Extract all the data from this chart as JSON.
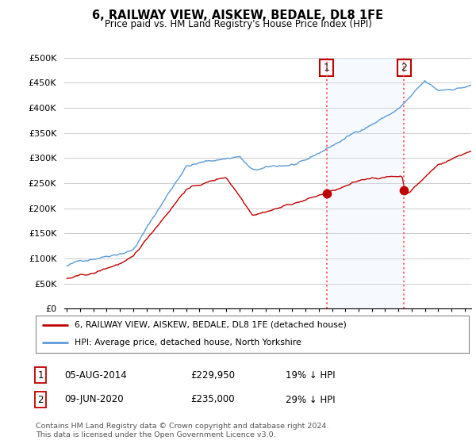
{
  "title": "6, RAILWAY VIEW, AISKEW, BEDALE, DL8 1FE",
  "subtitle": "Price paid vs. HM Land Registry's House Price Index (HPI)",
  "ylabel_ticks": [
    "£0",
    "£50K",
    "£100K",
    "£150K",
    "£200K",
    "£250K",
    "£300K",
    "£350K",
    "£400K",
    "£450K",
    "£500K"
  ],
  "ytick_values": [
    0,
    50000,
    100000,
    150000,
    200000,
    250000,
    300000,
    350000,
    400000,
    450000,
    500000
  ],
  "xlim_start": 1995.0,
  "xlim_end": 2025.5,
  "ylim": [
    0,
    500000
  ],
  "hpi_color": "#5B9BD5",
  "price_color": "#C00000",
  "transaction1_x": 2014.59,
  "transaction1_y": 229950,
  "transaction2_x": 2020.44,
  "transaction2_y": 235000,
  "vline_color": "#FF6666",
  "shade_color": "#DDEEFF",
  "legend_line1": "6, RAILWAY VIEW, AISKEW, BEDALE, DL8 1FE (detached house)",
  "legend_line2": "HPI: Average price, detached house, North Yorkshire",
  "table_rows": [
    [
      "1",
      "05-AUG-2014",
      "£229,950",
      "19% ↓ HPI"
    ],
    [
      "2",
      "09-JUN-2020",
      "£235,000",
      "29% ↓ HPI"
    ]
  ],
  "footer": "Contains HM Land Registry data © Crown copyright and database right 2024.\nThis data is licensed under the Open Government Licence v3.0.",
  "background_color": "#ffffff",
  "grid_color": "#cccccc"
}
